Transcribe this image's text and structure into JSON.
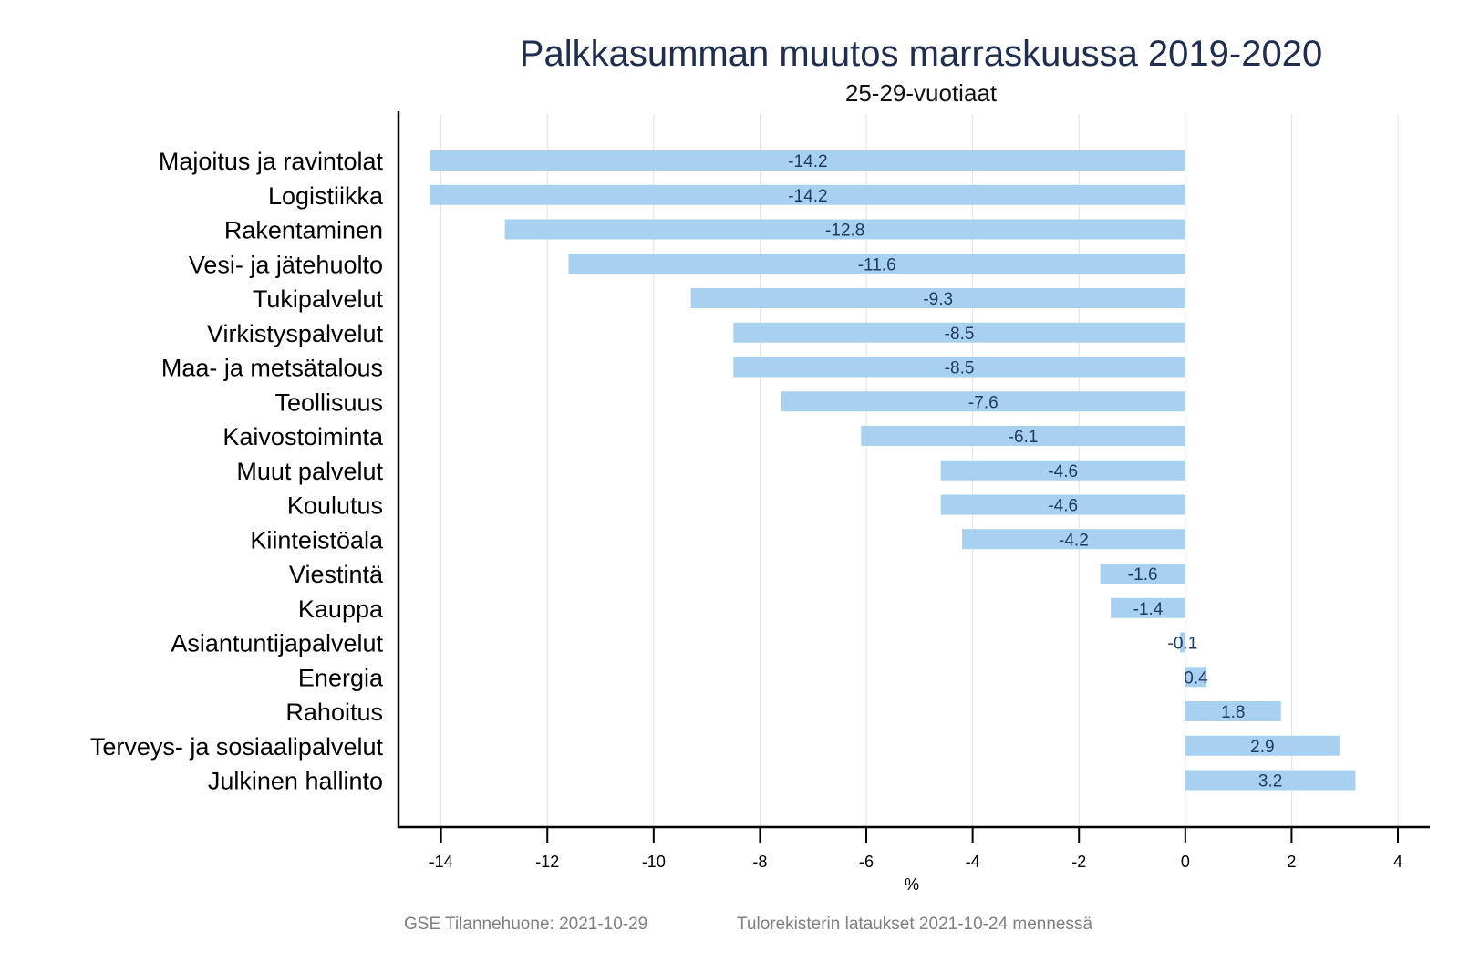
{
  "chart_data": {
    "type": "bar",
    "orientation": "horizontal",
    "title": "Palkkasumman muutos marraskuussa 2019-2020",
    "subtitle": "25-29-vuotiaat",
    "xlabel": "%",
    "ylabel": "",
    "xlim": [
      -14.8,
      4.6
    ],
    "xticks": [
      -14,
      -12,
      -10,
      -8,
      -6,
      -4,
      -2,
      0,
      2,
      4
    ],
    "xtick_labels": [
      "-14",
      "-12",
      "-10",
      "-8",
      "-6",
      "-4",
      "-2",
      "0",
      "2",
      "4"
    ],
    "grid": "vertical",
    "bar_color": "#a8d1ef",
    "categories": [
      "Majoitus ja ravintolat",
      "Logistiikka",
      "Rakentaminen",
      "Vesi- ja jätehuolto",
      "Tukipalvelut",
      "Virkistyspalvelut",
      "Maa- ja metsätalous",
      "Teollisuus",
      "Kaivostoiminta",
      "Muut palvelut",
      "Koulutus",
      "Kiinteistöala",
      "Viestintä",
      "Kauppa",
      "Asiantuntijapalvelut",
      "Energia",
      "Rahoitus",
      "Terveys- ja sosiaalipalvelut",
      "Julkinen hallinto"
    ],
    "values": [
      -14.2,
      -14.2,
      -12.8,
      -11.6,
      -9.3,
      -8.5,
      -8.5,
      -7.6,
      -6.1,
      -4.6,
      -4.6,
      -4.2,
      -1.6,
      -1.4,
      -0.1,
      0.4,
      1.8,
      2.9,
      3.2
    ],
    "data_labels": [
      "-14.2",
      "-14.2",
      "-12.8",
      "-11.6",
      "-9.3",
      "-8.5",
      "-8.5",
      "-7.6",
      "-6.1",
      "-4.6",
      "-4.6",
      "-4.2",
      "-1.6",
      "-1.4",
      "-0.1",
      "0.4",
      "1.8",
      "2.9",
      "3.2"
    ]
  },
  "footer": {
    "source_left": "GSE Tilannehuone: 2021-10-29",
    "source_right": "Tulorekisterin lataukset 2021-10-24 mennessä"
  }
}
